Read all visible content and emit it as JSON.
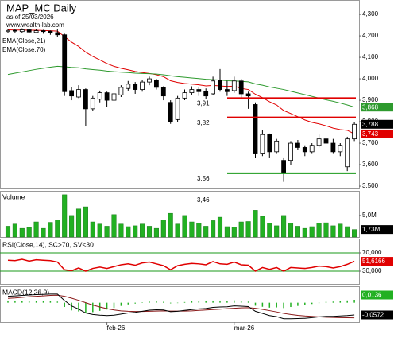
{
  "chart_data": [
    {
      "type": "candlestick",
      "title": "MAP_MC Daily",
      "subtitle": "as of 25/03/2026",
      "source": "www.wealth-lab.com",
      "open": [
        4220,
        4226,
        4220,
        4228,
        4216,
        4224,
        4222,
        4215,
        4205,
        3945,
        3915,
        3950,
        3860,
        3905,
        3935,
        3900,
        3925,
        3955,
        3975,
        3950,
        3985,
        3995,
        3960,
        3890,
        3810,
        3910,
        3935,
        3950,
        3940,
        3930,
        3995,
        3950,
        3945,
        3990,
        3930,
        3880,
        3650,
        3740,
        3660,
        3620,
        3620,
        3700,
        3680,
        3660,
        3690,
        3720,
        3700,
        3660,
        3590,
        3720
      ],
      "high": [
        4232,
        4230,
        4235,
        4230,
        4230,
        4228,
        4225,
        4230,
        4210,
        3960,
        3970,
        3955,
        3920,
        3945,
        3940,
        3945,
        3970,
        3990,
        3985,
        3995,
        4010,
        4000,
        3965,
        3900,
        3920,
        3950,
        3965,
        3960,
        3955,
        4010,
        4045,
        3990,
        4010,
        4000,
        3940,
        3890,
        3760,
        3745,
        3720,
        3630,
        3710,
        3715,
        3690,
        3700,
        3740,
        3730,
        3720,
        3700,
        3730,
        3800
      ],
      "low": [
        4212,
        4215,
        4215,
        4212,
        4212,
        4210,
        4205,
        4195,
        3920,
        3900,
        3910,
        3780,
        3850,
        3890,
        3870,
        3890,
        3915,
        3945,
        3930,
        3940,
        3970,
        3950,
        3900,
        3790,
        3800,
        3900,
        3925,
        3920,
        3905,
        3925,
        3940,
        3920,
        3935,
        3910,
        3860,
        3630,
        3640,
        3630,
        3650,
        3520,
        3600,
        3670,
        3640,
        3650,
        3680,
        3690,
        3650,
        3640,
        3570,
        3710
      ],
      "close": [
        4225,
        4222,
        4228,
        4218,
        4224,
        4220,
        4215,
        4205,
        3940,
        3920,
        3950,
        3860,
        3910,
        3935,
        3900,
        3930,
        3960,
        3975,
        3950,
        3985,
        4000,
        3960,
        3920,
        3800,
        3910,
        3935,
        3950,
        3940,
        3920,
        3990,
        3950,
        3940,
        3990,
        3930,
        3920,
        3650,
        3740,
        3660,
        3710,
        3560,
        3700,
        3680,
        3660,
        3690,
        3720,
        3700,
        3660,
        3690,
        3720,
        3788
      ],
      "close_label": "3,788",
      "up_color": "#ffffff",
      "down_color": "#000000",
      "series": [
        {
          "name": "EMA(Close,21)",
          "color": "#e00000",
          "last_label": "3,743",
          "values": [
            4228,
            4227,
            4227,
            4226,
            4226,
            4225,
            4224,
            4222,
            4196,
            4171,
            4151,
            4124,
            4104,
            4088,
            4071,
            4058,
            4049,
            4042,
            4034,
            4029,
            4025,
            4019,
            4010,
            3991,
            3983,
            3978,
            3975,
            3972,
            3967,
            3969,
            3967,
            3964,
            3966,
            3955,
            3950,
            3928,
            3912,
            3893,
            3878,
            3852,
            3838,
            3823,
            3808,
            3797,
            3790,
            3781,
            3770,
            3763,
            3760,
            3743
          ]
        },
        {
          "name": "EMA(Close,70)",
          "color": "#2e9a2e",
          "last_label": "3,868",
          "values": [
            4020,
            4026,
            4032,
            4038,
            4044,
            4049,
            4054,
            4058,
            4056,
            4053,
            4051,
            4046,
            4043,
            4040,
            4036,
            4033,
            4031,
            4029,
            4026,
            4025,
            4024,
            4022,
            4019,
            4014,
            4010,
            4007,
            4004,
            4001,
            3998,
            3996,
            3994,
            3991,
            3990,
            3988,
            3986,
            3976,
            3970,
            3962,
            3956,
            3950,
            3942,
            3934,
            3926,
            3918,
            3910,
            3902,
            3895,
            3887,
            3878,
            3868
          ]
        }
      ],
      "levels": [
        {
          "value": 3910,
          "label": "3,91",
          "color": "#e00000"
        },
        {
          "value": 3820,
          "label": "3,82",
          "color": "#e00000"
        },
        {
          "value": 3560,
          "label": "3,56",
          "color": "#1a9a1a"
        },
        {
          "value": 3460,
          "label": "3,46",
          "color": "#1a9a1a"
        }
      ],
      "ylim": [
        3489,
        4367
      ],
      "yticks": [
        {
          "value": 3500,
          "label": "3,500"
        },
        {
          "value": 3600,
          "label": "3,600"
        },
        {
          "value": 3700,
          "label": "3,700"
        },
        {
          "value": 3800,
          "label": "3,800"
        },
        {
          "value": 3900,
          "label": "3,900"
        },
        {
          "value": 4000,
          "label": "4,000"
        },
        {
          "value": 4100,
          "label": "4,100"
        },
        {
          "value": 4200,
          "label": "4,200"
        },
        {
          "value": 4300,
          "label": "4,300"
        }
      ]
    },
    {
      "type": "bar",
      "title": "Volume",
      "color": "#22b022",
      "values": [
        2.5,
        3.0,
        2.0,
        2.2,
        3.5,
        2.0,
        3.4,
        4.0,
        9.8,
        5.0,
        6.5,
        7.0,
        3.5,
        3.0,
        2.5,
        5.2,
        3.0,
        2.4,
        2.6,
        3.0,
        2.5,
        2.0,
        4.0,
        5.5,
        3.0,
        5.0,
        3.5,
        3.2,
        2.5,
        3.8,
        4.6,
        2.4,
        2.3,
        3.5,
        3.6,
        6.2,
        4.8,
        3.2,
        2.6,
        5.0,
        3.2,
        2.5,
        2.0,
        2.4,
        3.2,
        3.3,
        2.6,
        3.0,
        2.4,
        1.73
      ],
      "last_label": "1,73M",
      "ylim": [
        0,
        10.7
      ],
      "yticks": [
        {
          "value": 5,
          "label": "5,0M"
        }
      ]
    },
    {
      "type": "line",
      "title": "RSI(Close,14), SC>70, SV<30",
      "color": "#e00000",
      "grid_color": "#1a9a1a",
      "values": [
        54,
        53,
        56,
        52,
        55,
        54,
        53,
        50,
        33,
        31,
        37,
        30,
        36,
        39,
        36,
        40,
        44,
        46,
        43,
        48,
        50,
        46,
        42,
        33,
        42,
        45,
        47,
        46,
        44,
        51,
        46,
        45,
        50,
        44,
        43,
        30,
        38,
        34,
        38,
        30,
        38,
        37,
        36,
        38,
        41,
        40,
        37,
        40,
        45,
        51.6166
      ],
      "last_label": "51,6166",
      "ylim": [
        2.2,
        101.3
      ],
      "yticks": [
        {
          "value": 70,
          "label": "70,000"
        },
        {
          "value": 30,
          "label": "30,000"
        }
      ]
    },
    {
      "type": "macd",
      "title": "MACD(12,26,9)",
      "macd": {
        "color": "#000000",
        "last_label": "-0,0572",
        "values": [
          0.03,
          0.032,
          0.034,
          0.036,
          0.038,
          0.039,
          0.04,
          0.04,
          0.01,
          -0.015,
          -0.03,
          -0.048,
          -0.055,
          -0.058,
          -0.06,
          -0.058,
          -0.053,
          -0.048,
          -0.045,
          -0.04,
          -0.035,
          -0.033,
          -0.034,
          -0.042,
          -0.04,
          -0.036,
          -0.032,
          -0.029,
          -0.027,
          -0.022,
          -0.02,
          -0.019,
          -0.015,
          -0.016,
          -0.018,
          -0.04,
          -0.05,
          -0.06,
          -0.065,
          -0.075,
          -0.075,
          -0.074,
          -0.073,
          -0.07,
          -0.066,
          -0.064,
          -0.064,
          -0.062,
          -0.06,
          -0.0572
        ]
      },
      "signal": {
        "color": "#8b1a1a",
        "values": [
          0.02,
          0.022,
          0.025,
          0.028,
          0.03,
          0.032,
          0.034,
          0.035,
          0.03,
          0.021,
          0.011,
          0.0,
          -0.011,
          -0.02,
          -0.028,
          -0.034,
          -0.038,
          -0.04,
          -0.041,
          -0.041,
          -0.04,
          -0.039,
          -0.038,
          -0.039,
          -0.039,
          -0.039,
          -0.038,
          -0.036,
          -0.034,
          -0.032,
          -0.03,
          -0.028,
          -0.026,
          -0.024,
          -0.023,
          -0.026,
          -0.031,
          -0.037,
          -0.043,
          -0.05,
          -0.055,
          -0.059,
          -0.062,
          -0.064,
          -0.066,
          -0.068,
          -0.069,
          -0.07,
          -0.0705,
          -0.0708
        ]
      },
      "histogram": {
        "color": "#22b022",
        "last_label": "0,0136",
        "values": [
          0.01,
          0.01,
          0.009,
          0.008,
          0.008,
          0.007,
          0.006,
          0.005,
          -0.02,
          -0.036,
          -0.041,
          -0.048,
          -0.044,
          -0.038,
          -0.032,
          -0.024,
          -0.015,
          -0.008,
          -0.004,
          0.001,
          0.005,
          0.006,
          0.004,
          -0.003,
          -0.001,
          0.003,
          0.006,
          0.007,
          0.007,
          0.01,
          0.01,
          0.009,
          0.011,
          0.008,
          0.005,
          -0.014,
          -0.019,
          -0.023,
          -0.022,
          -0.025,
          -0.02,
          -0.015,
          -0.011,
          -0.006,
          0,
          0.004,
          0.005,
          0.008,
          0.0105,
          0.0136
        ]
      },
      "categories": [
        null,
        null,
        null,
        null,
        null,
        null,
        null,
        null,
        null,
        null,
        null,
        null,
        null,
        null,
        "feb-26",
        null,
        null,
        null,
        null,
        null,
        null,
        null,
        null,
        null,
        null,
        null,
        null,
        null,
        null,
        null,
        null,
        null,
        "mar-26",
        null,
        null,
        null,
        null,
        null,
        null,
        null,
        null,
        null,
        null,
        null,
        null,
        null,
        null,
        null,
        null,
        null
      ],
      "ylim": [
        -0.0908,
        0.077
      ]
    }
  ]
}
